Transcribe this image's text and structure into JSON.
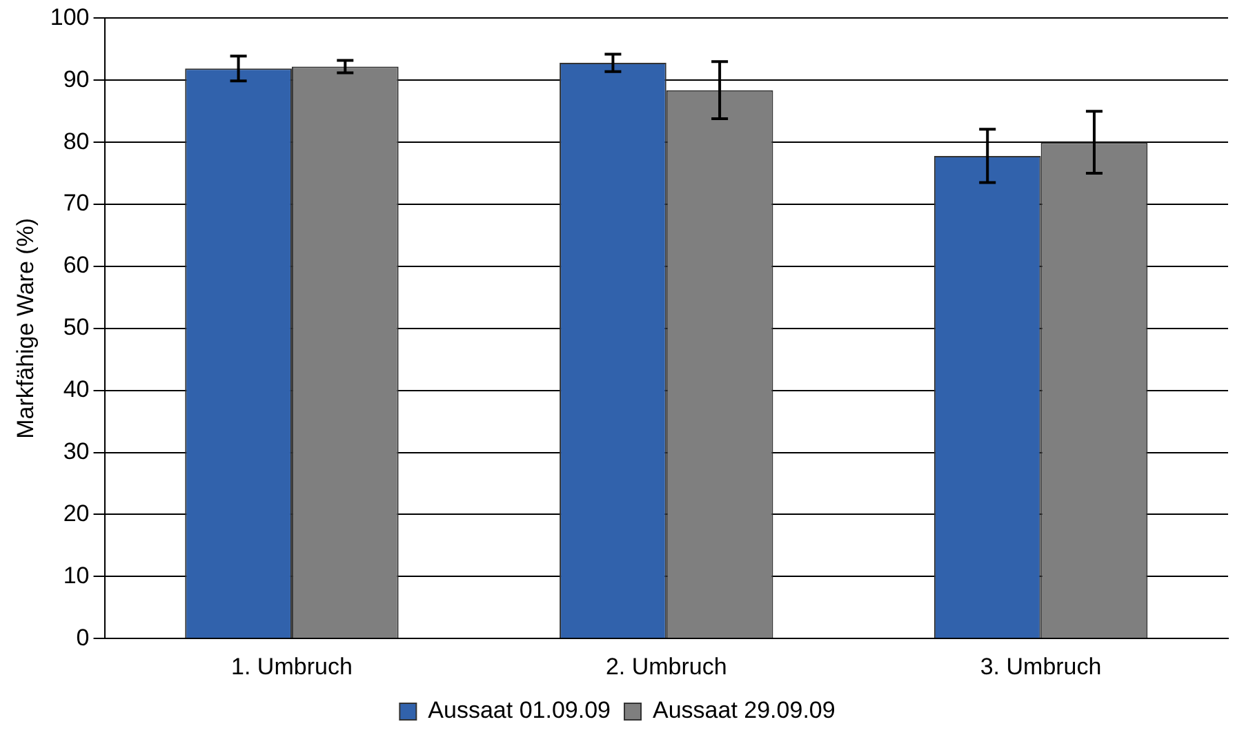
{
  "chart_data": {
    "type": "bar",
    "ylabel": "Markfähige Ware (%)",
    "categories": [
      "1. Umbruch",
      "2. Umbruch",
      "3. Umbruch"
    ],
    "series": [
      {
        "name": "Aussaat 01.09.09",
        "color": "#3162ac",
        "values": [
          91.9,
          92.8,
          77.8
        ],
        "errors": [
          2,
          1.4,
          4.3
        ]
      },
      {
        "name": "Aussaat 29.09.09",
        "color": "#7f7f7f",
        "values": [
          92.2,
          88.4,
          80
        ],
        "errors": [
          1,
          4.6,
          5
        ]
      }
    ],
    "ylim": [
      0,
      100
    ],
    "yticks": [
      0,
      10,
      20,
      30,
      40,
      50,
      60,
      70,
      80,
      90,
      100
    ],
    "grid": "y",
    "legend": "bottom"
  }
}
